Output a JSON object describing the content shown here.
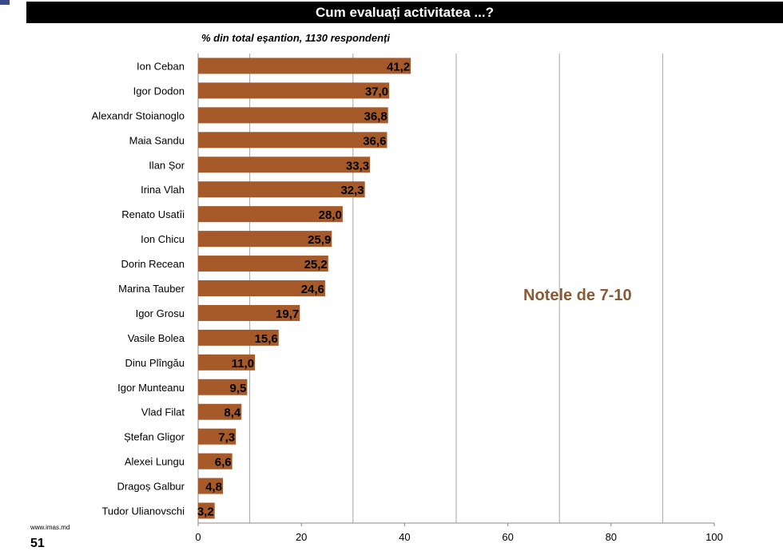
{
  "header": {
    "title": "Cum evaluați activitatea ...?",
    "subtitle": "% din total eșantion, 1130 respondenți"
  },
  "footer": {
    "url": "www.imas.md",
    "page_number": "51"
  },
  "colors": {
    "bar": "#a65a2a",
    "annotation": "#8a5a33",
    "gridline": "#a6a6a6",
    "title_background": "#000000"
  },
  "chart_data": {
    "type": "bar",
    "orientation": "horizontal",
    "title": "Cum evaluați activitatea ...?",
    "subtitle": "% din total eșantion, 1130 respondenți",
    "annotation": "Notele de 7-10",
    "categories": [
      "Ion Ceban",
      "Igor Dodon",
      "Alexandr Stoianoglo",
      "Maia Sandu",
      "Ilan Șor",
      "Irina Vlah",
      "Renato Usatîi",
      "Ion Chicu",
      "Dorin Recean",
      "Marina Tauber",
      "Igor Grosu",
      "Vasile Bolea",
      "Dinu Plîngău",
      "Igor Munteanu",
      "Vlad Filat",
      "Ștefan Gligor",
      "Alexei Lungu",
      "Dragoș Galbur",
      "Tudor Ulianovschi"
    ],
    "values": [
      41.2,
      37.0,
      36.8,
      36.6,
      33.3,
      32.3,
      28.0,
      25.9,
      25.2,
      24.6,
      19.7,
      15.6,
      11.0,
      9.5,
      8.4,
      7.3,
      6.6,
      4.8,
      3.2
    ],
    "value_labels": [
      "41,2",
      "37,0",
      "36,8",
      "36,6",
      "33,3",
      "32,3",
      "28,0",
      "25,9",
      "25,2",
      "24,6",
      "19,7",
      "15,6",
      "11,0",
      "9,5",
      "8,4",
      "7,3",
      "6,6",
      "4,8",
      "3,2"
    ],
    "x_ticks": [
      "0",
      "20",
      "40",
      "60",
      "80",
      "100"
    ],
    "xlim": [
      0,
      100
    ],
    "grid": true
  }
}
